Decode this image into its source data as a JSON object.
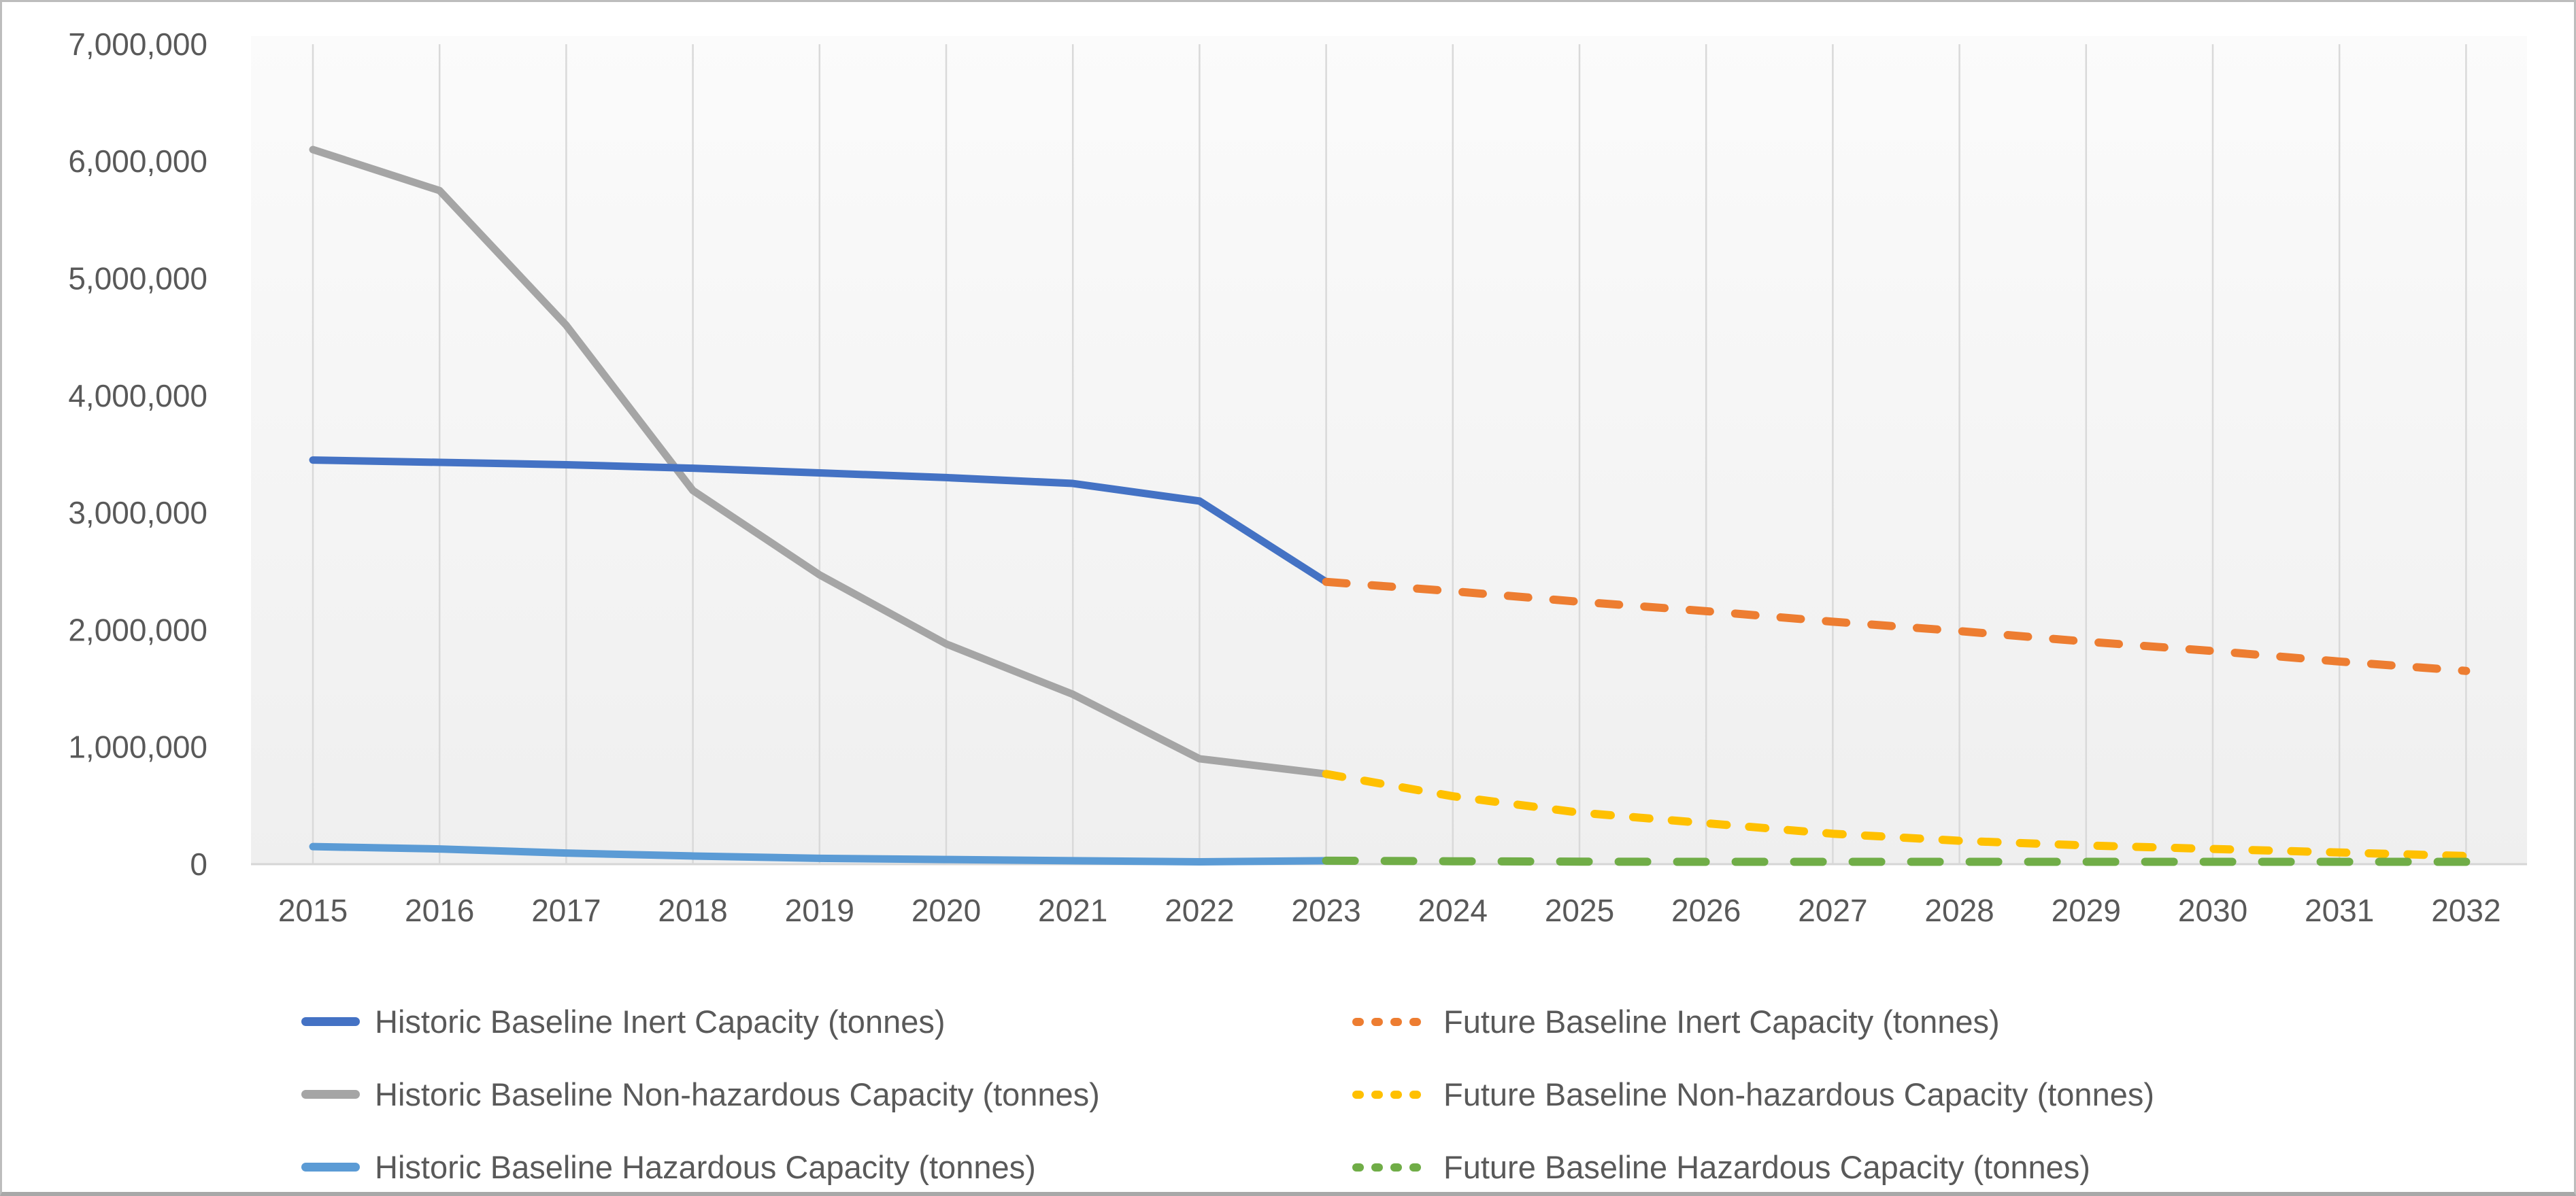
{
  "chart_data": {
    "type": "line",
    "title": "",
    "xlabel": "",
    "ylabel": "",
    "x_categories": [
      2015,
      2016,
      2017,
      2018,
      2019,
      2020,
      2021,
      2022,
      2023,
      2024,
      2025,
      2026,
      2027,
      2028,
      2029,
      2030,
      2031,
      2032
    ],
    "ylim": [
      0,
      7000000
    ],
    "ytick_step": 1000000,
    "grid": "vertical-only",
    "legend_position": "bottom-two-columns",
    "series": [
      {
        "name": "Historic Baseline Non-hazardous Capacity (tonnes)",
        "color": "#A5A5A5",
        "style": "solid",
        "legend_column": 0,
        "legend_row": 1,
        "x": [
          2015,
          2016,
          2017,
          2018,
          2019,
          2020,
          2021,
          2022,
          2023
        ],
        "values": [
          6100000,
          5750000,
          4600000,
          3190000,
          2470000,
          1880000,
          1450000,
          900000,
          770000
        ]
      },
      {
        "name": "Historic Baseline Inert Capacity (tonnes)",
        "color": "#4472C4",
        "style": "solid",
        "legend_column": 0,
        "legend_row": 0,
        "x": [
          2015,
          2016,
          2017,
          2018,
          2019,
          2020,
          2021,
          2022,
          2023
        ],
        "values": [
          3450000,
          3430000,
          3410000,
          3380000,
          3340000,
          3300000,
          3250000,
          3100000,
          2410000
        ]
      },
      {
        "name": "Historic Baseline Hazardous Capacity (tonnes)",
        "color": "#5B9BD5",
        "style": "solid",
        "legend_column": 0,
        "legend_row": 2,
        "x": [
          2015,
          2016,
          2017,
          2018,
          2019,
          2020,
          2021,
          2022,
          2023
        ],
        "values": [
          150000,
          130000,
          95000,
          70000,
          50000,
          40000,
          30000,
          20000,
          30000
        ]
      },
      {
        "name": "Future Baseline Inert Capacity (tonnes)",
        "color": "#ED7D31",
        "style": "dashed",
        "legend_column": 1,
        "legend_row": 0,
        "x": [
          2023,
          2024,
          2025,
          2026,
          2027,
          2028,
          2029,
          2030,
          2031,
          2032
        ],
        "values": [
          2410000,
          2330000,
          2240000,
          2160000,
          2070000,
          1990000,
          1900000,
          1820000,
          1730000,
          1650000
        ]
      },
      {
        "name": "Future Baseline Non-hazardous Capacity (tonnes)",
        "color": "#FFC000",
        "style": "dashed",
        "legend_column": 1,
        "legend_row": 1,
        "x": [
          2023,
          2024,
          2025,
          2026,
          2027,
          2028,
          2029,
          2030,
          2031,
          2032
        ],
        "values": [
          770000,
          580000,
          440000,
          350000,
          260000,
          200000,
          160000,
          130000,
          100000,
          70000
        ]
      },
      {
        "name": "Future Baseline Hazardous Capacity (tonnes)",
        "color": "#70AD47",
        "style": "dashed",
        "legend_column": 1,
        "legend_row": 2,
        "x": [
          2023,
          2024,
          2025,
          2026,
          2027,
          2028,
          2029,
          2030,
          2031,
          2032
        ],
        "values": [
          30000,
          25000,
          22000,
          20000,
          20000,
          20000,
          20000,
          20000,
          20000,
          20000
        ]
      }
    ]
  },
  "axis": {
    "y_tick_labels": [
      "0",
      "1,000,000",
      "2,000,000",
      "3,000,000",
      "4,000,000",
      "5,000,000",
      "6,000,000",
      "7,000,000"
    ],
    "x_tick_labels": [
      "2015",
      "2016",
      "2017",
      "2018",
      "2019",
      "2020",
      "2021",
      "2022",
      "2023",
      "2024",
      "2025",
      "2026",
      "2027",
      "2028",
      "2029",
      "2030",
      "2031",
      "2032"
    ]
  },
  "colors": {
    "axis_text": "#595959",
    "gridline": "#D9D9D9",
    "axis_line": "#D6D6D6",
    "plot_bg_top": "#FBFBFB",
    "plot_bg_bottom": "#EFEFEF",
    "canvas_bg": "#FFFFFF"
  }
}
